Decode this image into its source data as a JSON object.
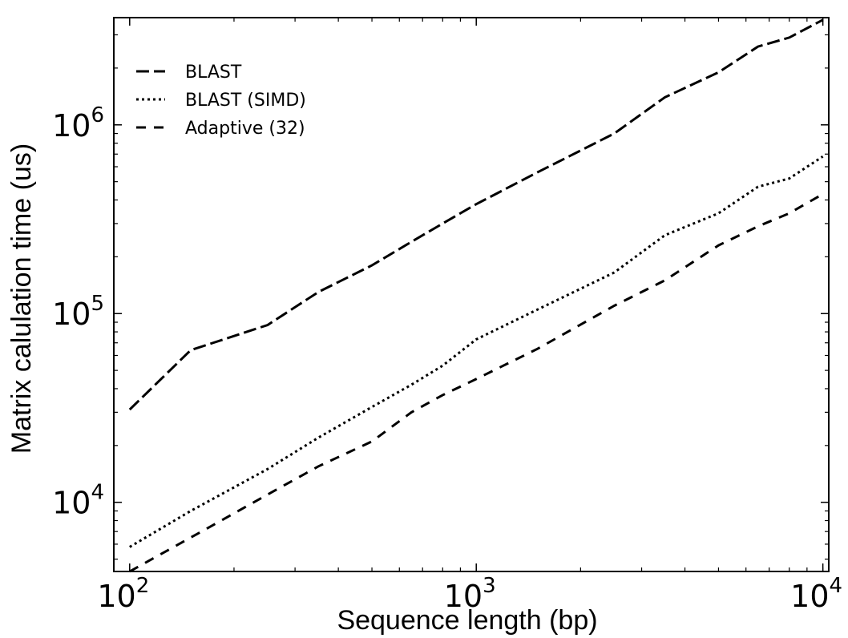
{
  "chart_data": {
    "type": "line",
    "xlabel": "Sequence length (bp)",
    "ylabel": "Matrix calulation time (us)",
    "xscale": "log",
    "yscale": "log",
    "xlim": [
      90,
      10400
    ],
    "ylim": [
      4300,
      3700000
    ],
    "x_ticks": [
      {
        "value": 100,
        "base": "10",
        "exp": "2"
      },
      {
        "value": 1000,
        "base": "10",
        "exp": "3"
      },
      {
        "value": 10000,
        "base": "10",
        "exp": "4"
      }
    ],
    "y_ticks": [
      {
        "value": 10000,
        "base": "10",
        "exp": "4"
      },
      {
        "value": 100000,
        "base": "10",
        "exp": "5"
      },
      {
        "value": 1000000,
        "base": "10",
        "exp": "6"
      }
    ],
    "legend": {
      "position": "top-left"
    },
    "grid": false,
    "series": [
      {
        "name": "BLAST",
        "style": "long-dash",
        "x": [
          100,
          150,
          250,
          350,
          500,
          650,
          800,
          1000,
          1500,
          2500,
          3500,
          5000,
          6500,
          8000,
          10000
        ],
        "y": [
          31000,
          64000,
          87000,
          130000,
          180000,
          240000,
          300000,
          380000,
          560000,
          900000,
          1400000,
          1900000,
          2600000,
          2900000,
          3600000
        ]
      },
      {
        "name": "BLAST (SIMD)",
        "style": "dotted",
        "x": [
          100,
          150,
          250,
          350,
          500,
          650,
          800,
          1000,
          1500,
          2500,
          3500,
          5000,
          6500,
          8000,
          10000
        ],
        "y": [
          5800,
          9000,
          15000,
          22000,
          32000,
          42000,
          53000,
          73000,
          105000,
          165000,
          260000,
          340000,
          470000,
          520000,
          680000
        ]
      },
      {
        "name": "Adaptive (32)",
        "style": "dashed",
        "x": [
          100,
          150,
          250,
          350,
          500,
          650,
          800,
          1000,
          1500,
          2500,
          3500,
          5000,
          6500,
          8000,
          10000
        ],
        "y": [
          4300,
          6500,
          11000,
          15500,
          21000,
          30000,
          37000,
          45000,
          65000,
          110000,
          150000,
          230000,
          290000,
          340000,
          430000
        ]
      }
    ]
  }
}
